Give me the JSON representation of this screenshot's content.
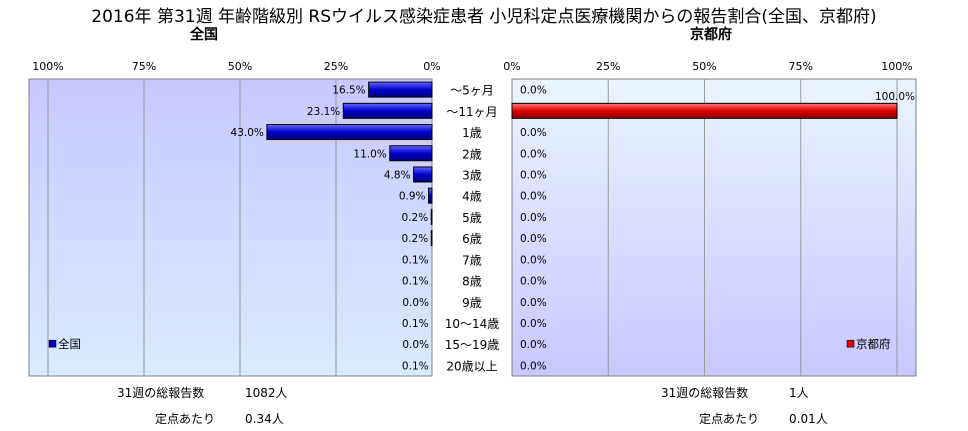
{
  "title": "2016年 第31週 年齢階級別 RSウイルス感染症患者 小児科定点医療機関からの報告割合(全国、京都府)",
  "chart_data": [
    {
      "type": "bar",
      "orientation": "horizontal",
      "direction": "right-to-left",
      "subtitle": "全国",
      "categories": [
        "～5ヶ月",
        "～11ヶ月",
        "1歳",
        "2歳",
        "3歳",
        "4歳",
        "5歳",
        "6歳",
        "7歳",
        "8歳",
        "9歳",
        "10～14歳",
        "15～19歳",
        "20歳以上"
      ],
      "values": [
        16.5,
        23.1,
        43.0,
        11.0,
        4.8,
        0.9,
        0.2,
        0.2,
        0.1,
        0.1,
        0.0,
        0.1,
        0.0,
        0.1
      ],
      "value_labels": [
        "16.5%",
        "23.1%",
        "43.0%",
        "11.0%",
        "4.8%",
        "0.9%",
        "0.2%",
        "0.2%",
        "0.1%",
        "0.1%",
        "0.0%",
        "0.1%",
        "0.0%",
        "0.1%"
      ],
      "xlim": [
        0,
        100
      ],
      "xticks": [
        "100%",
        "75%",
        "50%",
        "25%",
        "0%"
      ],
      "legend": "全国",
      "legend_position": "bottom-left",
      "bar_color": "#0000cc",
      "bg_top": "#c8c8ff",
      "bg_bottom": "#d8ecff",
      "grid": true,
      "stats": [
        {
          "label": "31週の総報告数",
          "value": "1082人"
        },
        {
          "label": "定点あたり",
          "value": "0.34人"
        }
      ]
    },
    {
      "type": "bar",
      "orientation": "horizontal",
      "direction": "left-to-right",
      "subtitle": "京都府",
      "categories": [
        "～5ヶ月",
        "～11ヶ月",
        "1歳",
        "2歳",
        "3歳",
        "4歳",
        "5歳",
        "6歳",
        "7歳",
        "8歳",
        "9歳",
        "10～14歳",
        "15～19歳",
        "20歳以上"
      ],
      "values": [
        0.0,
        100.0,
        0.0,
        0.0,
        0.0,
        0.0,
        0.0,
        0.0,
        0.0,
        0.0,
        0.0,
        0.0,
        0.0,
        0.0
      ],
      "value_labels": [
        "0.0%",
        "100.0%",
        "0.0%",
        "0.0%",
        "0.0%",
        "0.0%",
        "0.0%",
        "0.0%",
        "0.0%",
        "0.0%",
        "0.0%",
        "0.0%",
        "0.0%",
        "0.0%"
      ],
      "xlim": [
        0,
        100
      ],
      "xticks": [
        "0%",
        "25%",
        "50%",
        "75%",
        "100%"
      ],
      "legend": "京都府",
      "legend_position": "bottom-right",
      "bar_color": "#dd0000",
      "bg_top": "#eaf4ff",
      "bg_bottom": "#c8c8ff",
      "grid": true,
      "stats": [
        {
          "label": "31週の総報告数",
          "value": "1人"
        },
        {
          "label": "定点あたり",
          "value": "0.01人"
        }
      ]
    }
  ]
}
